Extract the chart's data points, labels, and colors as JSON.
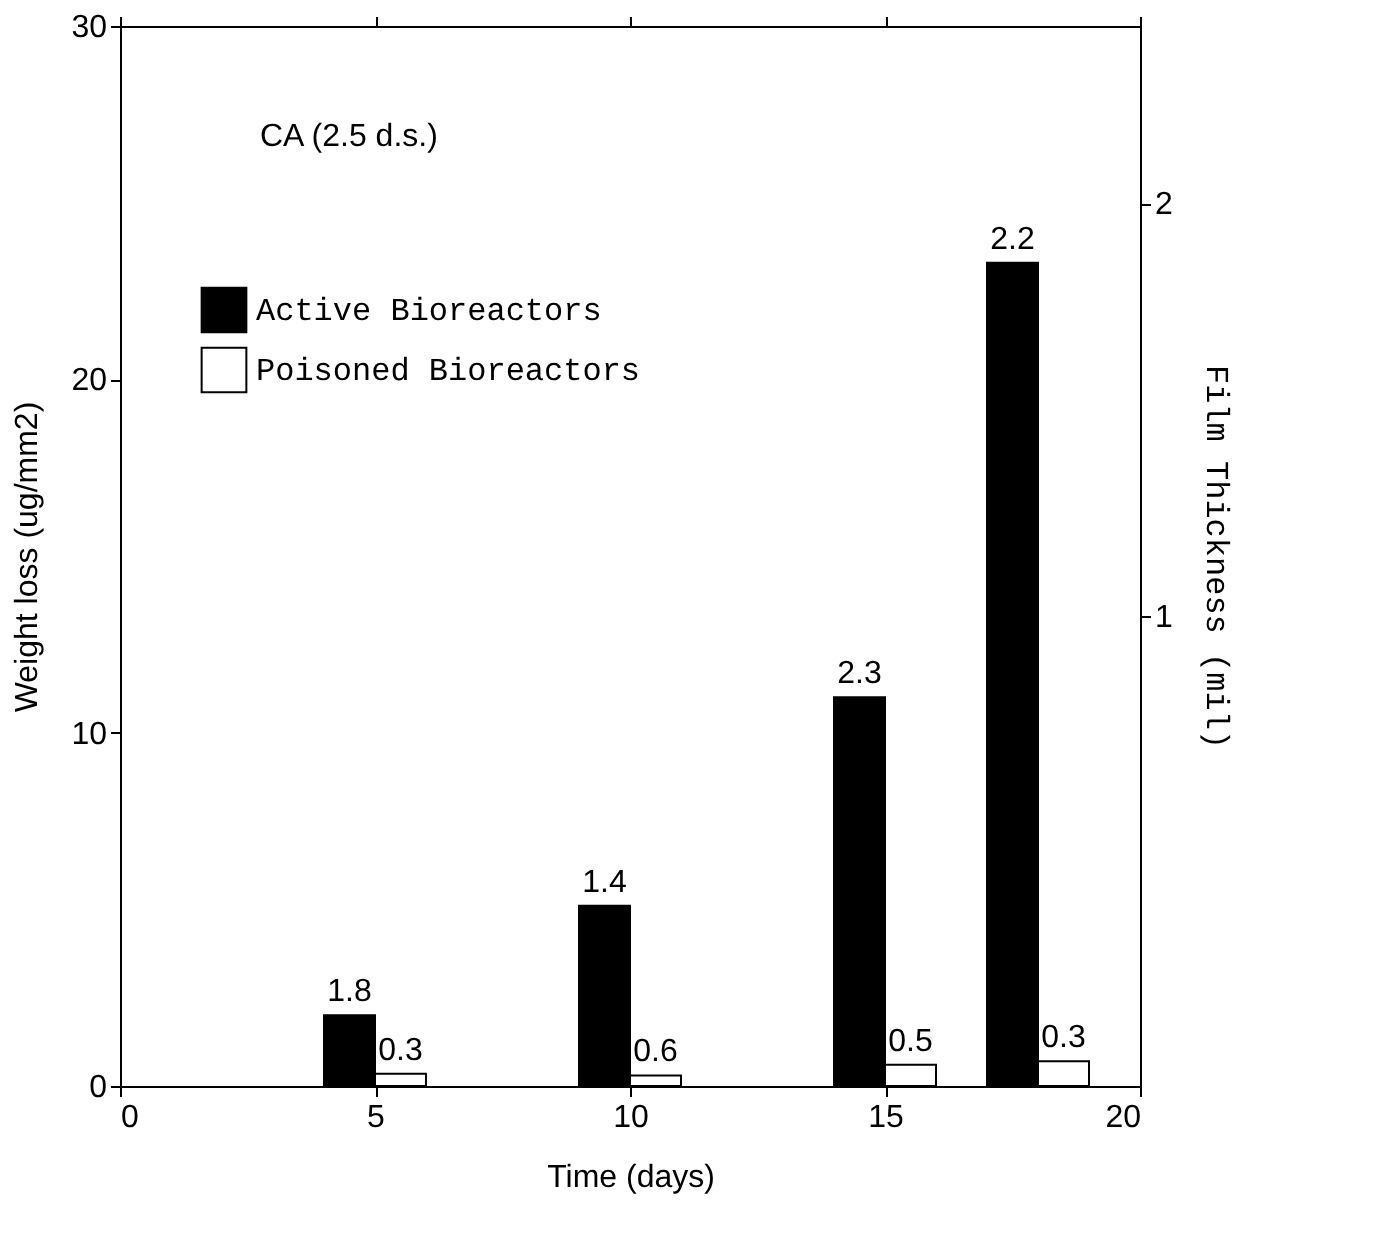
{
  "chart_data": {
    "type": "bar",
    "xlabel": "Time (days)",
    "ylabel": "Weight loss (ug/mm2)",
    "y2label": "Film Thickness (mil)",
    "annotations": [
      "CA (2.5 d.s.)",
      {
        "text": "1.8",
        "x": 4.5,
        "y": 2.0
      },
      {
        "text": "1.4",
        "x": 9.5,
        "y": 5.1
      },
      {
        "text": "2.3",
        "x": 14.5,
        "y": 11.0
      },
      {
        "text": "2.2",
        "x": 17.5,
        "y": 23.3
      },
      {
        "text": "0.3",
        "x": 5.5,
        "y": 0.35
      },
      {
        "text": "0.6",
        "x": 10.5,
        "y": 0.3
      },
      {
        "text": "0.5",
        "x": 15.5,
        "y": 0.6
      },
      {
        "text": "0.3",
        "x": 18.5,
        "y": 0.7
      }
    ],
    "series": [
      {
        "name": "Active Bioreactors",
        "color": "#000000",
        "x": [
          4.5,
          9.5,
          14.5,
          17.5
        ],
        "values": [
          2.0,
          5.1,
          11.0,
          23.3
        ]
      },
      {
        "name": "Poisoned Bioreactors",
        "color": "#ffffff",
        "x": [
          5.5,
          10.5,
          15.5,
          18.5
        ],
        "values": [
          0.35,
          0.3,
          0.6,
          0.7
        ]
      }
    ],
    "xlim": [
      0,
      20
    ],
    "xticks": [
      0,
      5,
      10,
      15,
      20
    ],
    "ylim": [
      0,
      30
    ],
    "yticks": [
      0,
      10,
      20,
      30
    ],
    "y2lim": [
      -0.14,
      2.43
    ],
    "y2ticks": [
      1,
      2
    ],
    "grid": false,
    "legend": "top left"
  }
}
